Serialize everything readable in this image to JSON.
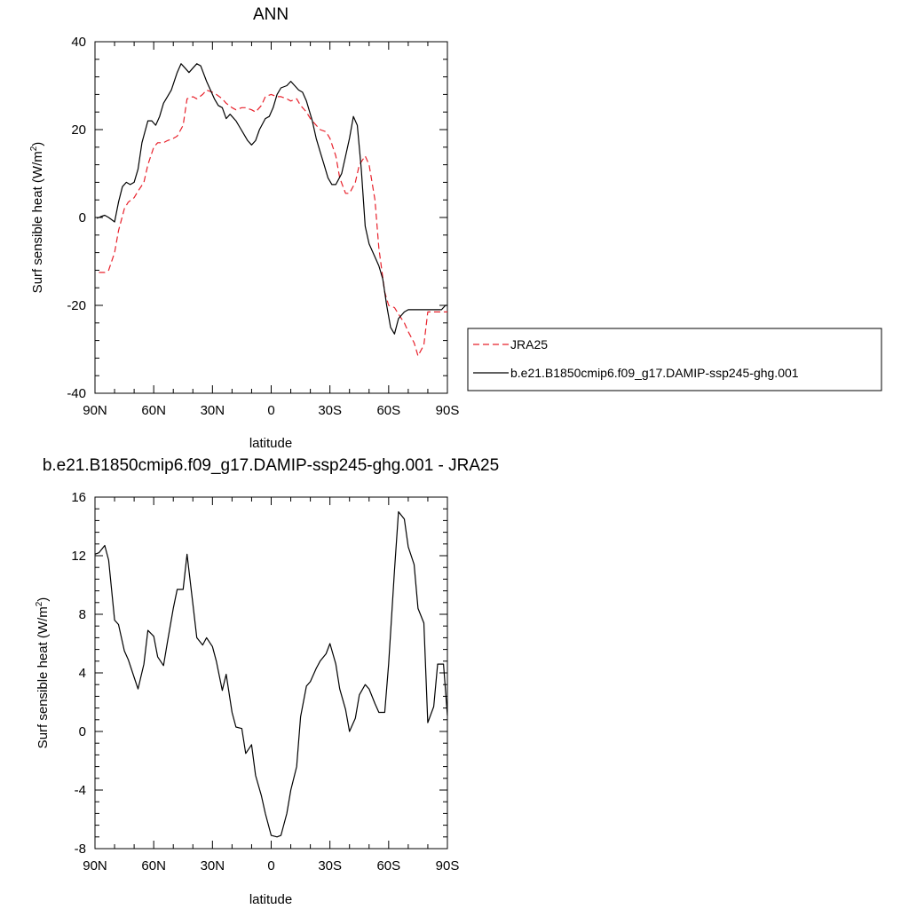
{
  "chart_data": [
    {
      "type": "line",
      "title": "ANN",
      "xlabel": "latitude",
      "ylabel": "Surf sensible heat (W/m²)",
      "ylabel_main": "Surf sensible heat (W/m",
      "ylabel_sup": "2",
      "ylabel_tail": ")",
      "xlim": [
        90,
        -90
      ],
      "ylim": [
        -40,
        40
      ],
      "xticks": [
        90,
        60,
        30,
        0,
        -30,
        -60,
        -90
      ],
      "xtick_labels": [
        "90N",
        "60N",
        "30N",
        "0",
        "30S",
        "60S",
        "90S"
      ],
      "yticks": [
        -40,
        -20,
        0,
        20,
        40
      ],
      "ytick_labels": [
        "-40",
        "-20",
        "0",
        "20",
        "40"
      ],
      "legend_position": "right",
      "series": [
        {
          "name": "JRA25",
          "color": "#e8212b",
          "dash": "dashed",
          "x": [
            88,
            85,
            83,
            80,
            78,
            75,
            73,
            70,
            68,
            65,
            63,
            60,
            58,
            55,
            53,
            50,
            48,
            45,
            43,
            40,
            38,
            35,
            33,
            30,
            28,
            25,
            23,
            20,
            18,
            15,
            13,
            10,
            8,
            5,
            3,
            0,
            -3,
            -5,
            -8,
            -10,
            -13,
            -15,
            -18,
            -20,
            -23,
            -25,
            -28,
            -30,
            -33,
            -35,
            -38,
            -40,
            -43,
            -45,
            -48,
            -50,
            -53,
            -55,
            -58,
            -60,
            -63,
            -65,
            -68,
            -70,
            -73,
            -75,
            -78,
            -80,
            -83,
            -85,
            -88,
            -90
          ],
          "y": [
            -12.5,
            -12.5,
            -12,
            -8,
            -3,
            2,
            3.5,
            4.5,
            6,
            8,
            12,
            16,
            17,
            17,
            17.5,
            18,
            18.5,
            21,
            27,
            27.5,
            27,
            28,
            29,
            28.5,
            28,
            27,
            26,
            25,
            24.5,
            25,
            25,
            24.5,
            24,
            25.5,
            27.5,
            28,
            27.5,
            27.5,
            27,
            26.5,
            27,
            25.5,
            24,
            22.5,
            21,
            20,
            19.5,
            18,
            14,
            9,
            5.5,
            5.5,
            8,
            12,
            14,
            12,
            4,
            -7,
            -17,
            -20,
            -20.5,
            -22,
            -24,
            -26,
            -28.5,
            -31.5,
            -29,
            -21.5,
            -21.5,
            -21.5,
            -21.5,
            -21.5
          ]
        },
        {
          "name": "b.e21.B1850cmip6.f09_g17.DAMIP-ssp245-ghg.001",
          "color": "#000000",
          "dash": "solid",
          "x": [
            89,
            87,
            85,
            83,
            80,
            78,
            76,
            74,
            72,
            70,
            68,
            66,
            63,
            61,
            59,
            57,
            55,
            53,
            51,
            48,
            46,
            44,
            42,
            40,
            38,
            36,
            33,
            31,
            29,
            27,
            25,
            23,
            21,
            18,
            16,
            14,
            12,
            10,
            8,
            6,
            3,
            1,
            -1,
            -3,
            -5,
            -8,
            -10,
            -12,
            -14,
            -16,
            -18,
            -21,
            -23,
            -25,
            -27,
            -29,
            -31,
            -33,
            -36,
            -38,
            -40,
            -42,
            -44,
            -46,
            -48,
            -50,
            -53,
            -55,
            -57,
            -59,
            -61,
            -63,
            -65,
            -68,
            -70,
            -72,
            -74,
            -76,
            -78,
            -80,
            -83,
            -85,
            -87,
            -89,
            -90
          ],
          "y": [
            -0.2,
            0.2,
            0.5,
            0,
            -1,
            3.5,
            7,
            8,
            7.5,
            8,
            11,
            17,
            22,
            22,
            21,
            23,
            26,
            27.5,
            29,
            33,
            35,
            34,
            33,
            34,
            35,
            34.5,
            31,
            29,
            27,
            25.5,
            25,
            22.5,
            23.5,
            22,
            20.5,
            19,
            17.5,
            16.5,
            17.5,
            20,
            22.5,
            23,
            25,
            28,
            29.5,
            30,
            31,
            30,
            29,
            28.5,
            26.5,
            22,
            18,
            15,
            12,
            9,
            7.5,
            7.5,
            10,
            14,
            18,
            23,
            21,
            11,
            -2,
            -6,
            -9,
            -11,
            -14,
            -20,
            -25,
            -26.5,
            -23,
            -21.5,
            -21,
            -21,
            -21,
            -21,
            -21,
            -21,
            -21,
            -21,
            -21,
            -20,
            -20
          ]
        }
      ]
    },
    {
      "type": "line",
      "title": "b.e21.B1850cmip6.f09_g17.DAMIP-ssp245-ghg.001 - JRA25",
      "xlabel": "latitude",
      "ylabel": "Surf sensible heat (W/m²)",
      "ylabel_main": "Surf sensible heat (W/m",
      "ylabel_sup": "2",
      "ylabel_tail": ")",
      "xlim": [
        90,
        -90
      ],
      "ylim": [
        -8,
        16
      ],
      "xticks": [
        90,
        60,
        30,
        0,
        -30,
        -60,
        -90
      ],
      "xtick_labels": [
        "90N",
        "60N",
        "30N",
        "0",
        "30S",
        "60S",
        "90S"
      ],
      "yticks": [
        -8,
        -4,
        0,
        4,
        8,
        12,
        16
      ],
      "ytick_labels": [
        "-8",
        "-4",
        "0",
        "4",
        "8",
        "12",
        "16"
      ],
      "series": [
        {
          "color": "#000000",
          "dash": "solid",
          "x": [
            90,
            88,
            85,
            83,
            80,
            78,
            75,
            73,
            70,
            68,
            65,
            63,
            60,
            58,
            55,
            53,
            50,
            48,
            45,
            43,
            40,
            38,
            35,
            33,
            30,
            28,
            25,
            23,
            20,
            18,
            15,
            13,
            10,
            8,
            5,
            3,
            0,
            -3,
            -5,
            -8,
            -10,
            -13,
            -15,
            -18,
            -20,
            -23,
            -25,
            -28,
            -30,
            -33,
            -35,
            -38,
            -40,
            -43,
            -45,
            -48,
            -50,
            -53,
            -55,
            -58,
            -60,
            -63,
            -65,
            -68,
            -70,
            -73,
            -75,
            -78,
            -80,
            -83,
            -85,
            -88,
            -90
          ],
          "y": [
            12.1,
            12.2,
            12.7,
            11.7,
            7.6,
            7.3,
            5.5,
            4.9,
            3.7,
            2.9,
            4.6,
            6.9,
            6.5,
            5.1,
            4.5,
            6.1,
            8.4,
            9.7,
            9.7,
            12.1,
            8.7,
            6.4,
            5.9,
            6.4,
            5.8,
            4.8,
            2.8,
            3.9,
            1.3,
            0.3,
            0.2,
            -1.5,
            -0.9,
            -3,
            -4.4,
            -5.6,
            -7.1,
            -7.2,
            -7.1,
            -5.6,
            -4,
            -2.4,
            1,
            3.1,
            3.4,
            4.3,
            4.8,
            5.3,
            6,
            4.6,
            2.9,
            1.5,
            0,
            0.9,
            2.5,
            3.2,
            2.9,
            1.9,
            1.3,
            1.3,
            4.6,
            11,
            15,
            14.5,
            12.6,
            11.4,
            8.4,
            7.4,
            0.6,
            1.7,
            4.6,
            4.6,
            1.1
          ]
        }
      ]
    }
  ]
}
